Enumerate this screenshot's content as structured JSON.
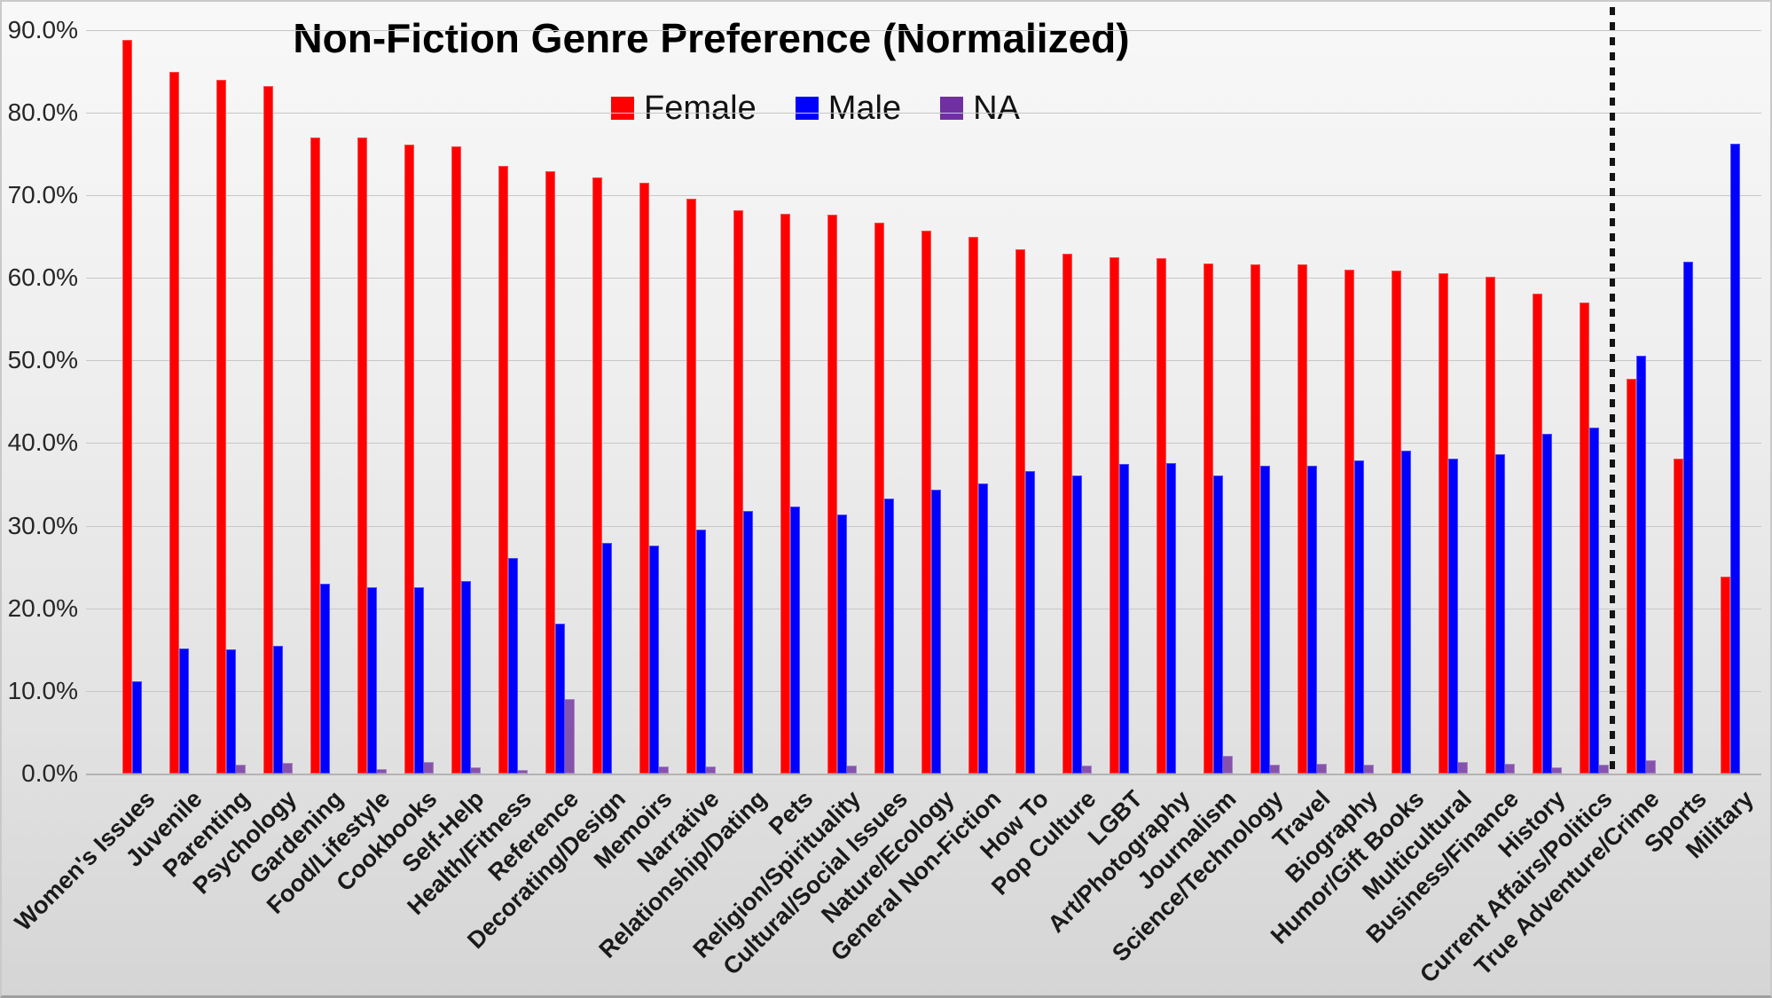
{
  "title": "Non-Fiction Genre Preference (Normalized)",
  "legend": [
    {
      "label": "Female",
      "color": "#ff0000"
    },
    {
      "label": "Male",
      "color": "#0000ff"
    },
    {
      "label": "NA",
      "color": "#7030a0"
    }
  ],
  "y_axis": {
    "tick_labels": [
      "0.0%",
      "10.0%",
      "20.0%",
      "30.0%",
      "40.0%",
      "50.0%",
      "60.0%",
      "70.0%",
      "80.0%",
      "90.0%"
    ],
    "min": 0,
    "max": 90,
    "step": 10
  },
  "chart_data": {
    "type": "bar",
    "title": "Non-Fiction Genre Preference (Normalized)",
    "xlabel": "",
    "ylabel": "",
    "ylim": [
      0,
      90
    ],
    "grid": true,
    "legend_position": "top-center",
    "separator_line_after_category": "Current Affairs/Politics",
    "separator_after_index": 31,
    "categories": [
      "Women's Issues",
      "Juvenile",
      "Parenting",
      "Psychology",
      "Gardening",
      "Food/Lifestyle",
      "Cookbooks",
      "Self-Help",
      "Health/Fitness",
      "Reference",
      "Decorating/Design",
      "Memoirs",
      "Narrative",
      "Relationship/Dating",
      "Pets",
      "Religion/Spirituality",
      "Cultural/Social Issues",
      "Nature/Ecology",
      "General Non-Fiction",
      "How To",
      "Pop Culture",
      "LGBT",
      "Art/Photography",
      "Journalism",
      "Science/Technology",
      "Travel",
      "Biography",
      "Humor/Gift Books",
      "Multicultural",
      "Business/Finance",
      "History",
      "Current Affairs/Politics",
      "True Adventure/Crime",
      "Sports",
      "Military"
    ],
    "series": [
      {
        "name": "Female",
        "color": "#ff0000",
        "values": [
          88.8,
          84.9,
          83.9,
          83.2,
          77.0,
          77.0,
          76.1,
          75.9,
          73.5,
          72.9,
          72.1,
          71.5,
          69.6,
          68.2,
          67.7,
          67.6,
          66.7,
          65.7,
          64.9,
          63.4,
          62.9,
          62.5,
          62.4,
          61.7,
          61.6,
          61.6,
          61.0,
          60.9,
          60.5,
          60.1,
          58.1,
          57.0,
          47.8,
          38.1,
          23.8
        ]
      },
      {
        "name": "Male",
        "color": "#0000ff",
        "values": [
          11.2,
          15.1,
          15.0,
          15.5,
          23.0,
          22.5,
          22.5,
          23.3,
          26.1,
          18.1,
          27.9,
          27.6,
          29.5,
          31.8,
          32.3,
          31.4,
          33.3,
          34.3,
          35.1,
          36.6,
          36.1,
          37.5,
          37.6,
          36.1,
          37.3,
          37.2,
          37.9,
          39.1,
          38.1,
          38.7,
          41.1,
          41.9,
          50.6,
          61.9,
          76.2
        ]
      },
      {
        "name": "NA",
        "color": "#7030a0",
        "values": [
          0,
          0,
          1.1,
          1.3,
          0,
          0.5,
          1.4,
          0.8,
          0.4,
          9.0,
          0,
          0.9,
          0.9,
          0,
          0,
          1.0,
          0,
          0,
          0,
          0,
          1.0,
          0,
          0,
          2.2,
          1.1,
          1.2,
          1.1,
          0,
          1.4,
          1.2,
          0.8,
          1.1,
          1.6,
          0,
          0
        ]
      }
    ]
  }
}
